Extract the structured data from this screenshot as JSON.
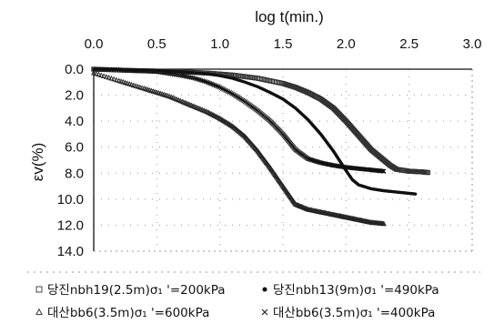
{
  "chart_data": {
    "type": "scatter",
    "title": "",
    "xlabel": "log t(min.)",
    "ylabel": "εv(%)",
    "xlim": [
      0.0,
      3.0
    ],
    "ylim": [
      0.0,
      14.0
    ],
    "y_inverted": true,
    "x_axis_position": "top",
    "x_ticks": [
      "0.0",
      "0.5",
      "1.0",
      "1.5",
      "2.0",
      "2.5",
      "3.0"
    ],
    "y_ticks": [
      "0.0",
      "2.0",
      "4.0",
      "6.0",
      "8.0",
      "10.0",
      "12.0",
      "14.0"
    ],
    "grid": "dotted",
    "legend_placement": "bottom",
    "series": [
      {
        "name": "당진nbh19(2.5m)σ₁ '=200kPa",
        "marker": "square",
        "x": [
          0.0,
          0.15,
          0.3,
          0.5,
          0.7,
          0.9,
          1.1,
          1.3,
          1.5,
          1.6,
          1.7,
          1.8,
          1.9,
          2.0,
          2.1,
          2.2,
          2.3,
          2.35,
          2.4,
          2.5,
          2.6,
          2.65
        ],
        "y": [
          0.0,
          0.05,
          0.1,
          0.15,
          0.2,
          0.3,
          0.45,
          0.7,
          1.1,
          1.4,
          1.8,
          2.3,
          3.0,
          4.0,
          5.1,
          6.2,
          7.0,
          7.4,
          7.7,
          7.85,
          7.9,
          7.95
        ]
      },
      {
        "name": "당진nbh13(9m)σ₁ '=490kPa",
        "marker": "dot",
        "x": [
          0.0,
          0.3,
          0.5,
          0.7,
          0.9,
          1.0,
          1.1,
          1.2,
          1.3,
          1.4,
          1.5,
          1.6,
          1.7,
          1.8,
          1.9,
          2.0,
          2.05,
          2.1,
          2.2,
          2.3,
          2.4,
          2.5,
          2.55
        ],
        "y": [
          0.0,
          0.05,
          0.1,
          0.2,
          0.35,
          0.5,
          0.7,
          1.0,
          1.35,
          1.8,
          2.3,
          3.0,
          3.9,
          5.0,
          6.3,
          7.8,
          8.5,
          8.9,
          9.2,
          9.35,
          9.45,
          9.55,
          9.6
        ]
      },
      {
        "name": "대산bb6(3.5m)σ₁ '=600kPa",
        "marker": "triangle",
        "x": [
          0.0,
          0.1,
          0.2,
          0.3,
          0.4,
          0.5,
          0.6,
          0.7,
          0.8,
          0.9,
          1.0,
          1.1,
          1.2,
          1.3,
          1.4,
          1.5,
          1.6,
          1.7,
          1.8,
          1.9,
          2.0,
          2.1,
          2.2,
          2.3
        ],
        "y": [
          0.3,
          0.6,
          0.9,
          1.2,
          1.5,
          1.8,
          2.1,
          2.5,
          2.9,
          3.3,
          3.8,
          4.4,
          5.2,
          6.3,
          7.6,
          9.0,
          10.4,
          10.8,
          11.0,
          11.2,
          11.4,
          11.6,
          11.8,
          11.9
        ]
      },
      {
        "name": "대산bb6(3.5m)σ₁ '=400kPa",
        "marker": "x",
        "x": [
          0.0,
          0.3,
          0.5,
          0.7,
          0.8,
          0.9,
          1.0,
          1.1,
          1.2,
          1.3,
          1.4,
          1.5,
          1.6,
          1.7,
          1.8,
          1.9,
          2.0,
          2.1,
          2.2,
          2.3
        ],
        "y": [
          0.0,
          0.1,
          0.2,
          0.5,
          0.7,
          1.0,
          1.4,
          1.9,
          2.5,
          3.2,
          4.0,
          5.0,
          6.2,
          6.9,
          7.2,
          7.4,
          7.55,
          7.65,
          7.75,
          7.85
        ]
      }
    ]
  }
}
